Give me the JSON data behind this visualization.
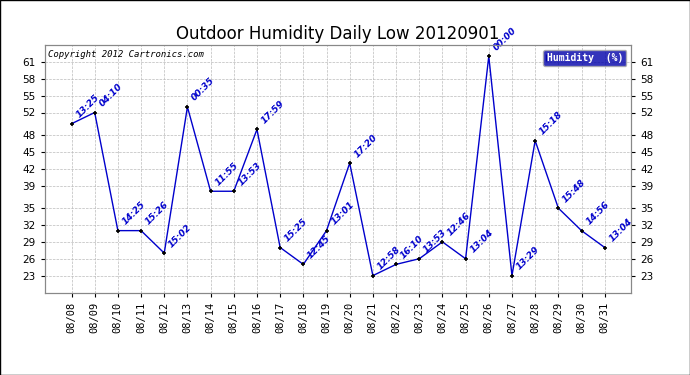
{
  "title": "Outdoor Humidity Daily Low 20120901",
  "copyright": "Copyright 2012 Cartronics.com",
  "legend_label": "Humidity  (%)",
  "background_color": "#ffffff",
  "line_color": "#0000cc",
  "marker_color": "#000000",
  "grid_color": "#bbbbbb",
  "dates": [
    "08/08",
    "08/09",
    "08/10",
    "08/11",
    "08/12",
    "08/13",
    "08/14",
    "08/15",
    "08/16",
    "08/17",
    "08/18",
    "08/19",
    "08/20",
    "08/21",
    "08/22",
    "08/23",
    "08/24",
    "08/25",
    "08/26",
    "08/27",
    "08/28",
    "08/29",
    "08/30",
    "08/31"
  ],
  "values": [
    50,
    52,
    31,
    31,
    27,
    53,
    38,
    38,
    49,
    28,
    25,
    31,
    43,
    23,
    25,
    26,
    29,
    26,
    62,
    23,
    47,
    35,
    31,
    28
  ],
  "time_labels": [
    "13:25",
    "04:10",
    "14:25",
    "15:26",
    "15:02",
    "00:35",
    "11:55",
    "13:53",
    "17:59",
    "15:25",
    "12:45",
    "13:01",
    "17:20",
    "12:58",
    "16:10",
    "13:53",
    "12:46",
    "13:04",
    "00:00",
    "13:29",
    "15:18",
    "15:48",
    "14:56",
    "13:04"
  ],
  "ylim_min": 20,
  "ylim_max": 64,
  "yticks": [
    23,
    26,
    29,
    32,
    35,
    39,
    42,
    45,
    48,
    52,
    55,
    58,
    61
  ],
  "title_fontsize": 12,
  "tick_fontsize": 7.5,
  "label_fontsize": 6.5,
  "copyright_fontsize": 6.5
}
